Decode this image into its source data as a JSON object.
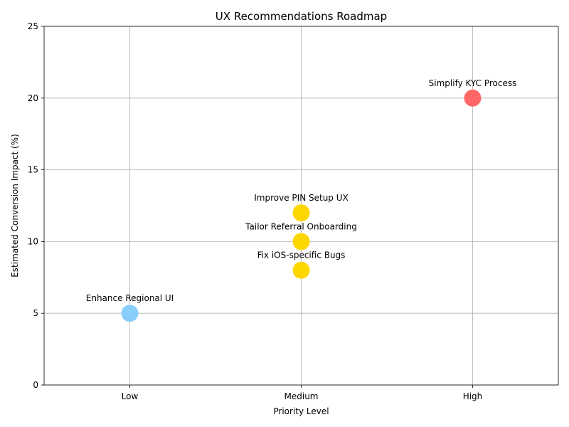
{
  "chart_data": {
    "type": "scatter",
    "title": "UX Recommendations Roadmap",
    "xlabel": "Priority Level",
    "ylabel": "Estimated Conversion Impact (%)",
    "x_categories": [
      "Low",
      "Medium",
      "High"
    ],
    "xlim": [
      -0.5,
      2.5
    ],
    "ylim": [
      0,
      25
    ],
    "y_ticks": [
      0,
      5,
      10,
      15,
      20,
      25
    ],
    "grid": true,
    "points": [
      {
        "label": "Simplify KYC Process",
        "x": "High",
        "y": 20,
        "color": "#ff6666"
      },
      {
        "label": "Improve PIN Setup UX",
        "x": "Medium",
        "y": 12,
        "color": "#ffd700"
      },
      {
        "label": "Tailor Referral Onboarding",
        "x": "Medium",
        "y": 10,
        "color": "#ffd700"
      },
      {
        "label": "Fix iOS-specific Bugs",
        "x": "Medium",
        "y": 8,
        "color": "#ffd700"
      },
      {
        "label": "Enhance Regional UI",
        "x": "Low",
        "y": 5,
        "color": "#87cefa"
      }
    ]
  }
}
